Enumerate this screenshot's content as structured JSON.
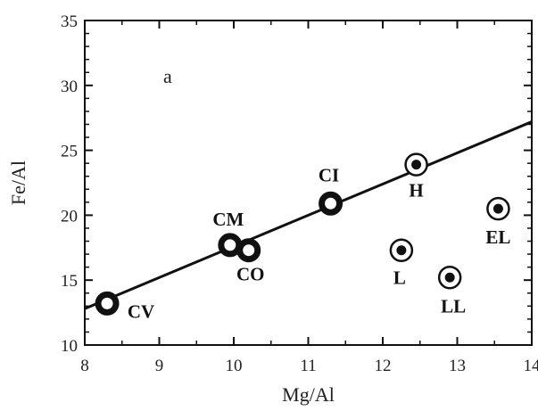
{
  "chart_data": {
    "type": "scatter",
    "title": "",
    "panel_label": "a",
    "xlabel": "Mg/Al",
    "ylabel": "Fe/Al",
    "xlim": [
      8,
      14
    ],
    "ylim": [
      10,
      35
    ],
    "x_ticks": [
      8,
      9,
      10,
      11,
      12,
      13,
      14
    ],
    "y_ticks": [
      10,
      15,
      20,
      25,
      30,
      35
    ],
    "grid": false,
    "legend": "none",
    "points": [
      {
        "label": "CV",
        "x": 8.3,
        "y": 13.2,
        "marker": "thick-ring"
      },
      {
        "label": "CM",
        "x": 9.95,
        "y": 17.7,
        "marker": "thick-ring"
      },
      {
        "label": "CO",
        "x": 10.2,
        "y": 17.3,
        "marker": "thick-ring"
      },
      {
        "label": "CI",
        "x": 11.3,
        "y": 20.9,
        "marker": "thick-ring"
      },
      {
        "label": "H",
        "x": 12.45,
        "y": 23.9,
        "marker": "dot-in-ring"
      },
      {
        "label": "L",
        "x": 12.25,
        "y": 17.3,
        "marker": "dot-in-ring"
      },
      {
        "label": "LL",
        "x": 12.9,
        "y": 15.2,
        "marker": "dot-in-ring"
      },
      {
        "label": "EL",
        "x": 13.55,
        "y": 20.5,
        "marker": "dot-in-ring"
      }
    ],
    "fit_line": {
      "x": [
        8,
        14
      ],
      "y": [
        12.8,
        27.2
      ]
    },
    "colors": {
      "ink": "#111111",
      "background": "#ffffff"
    }
  }
}
